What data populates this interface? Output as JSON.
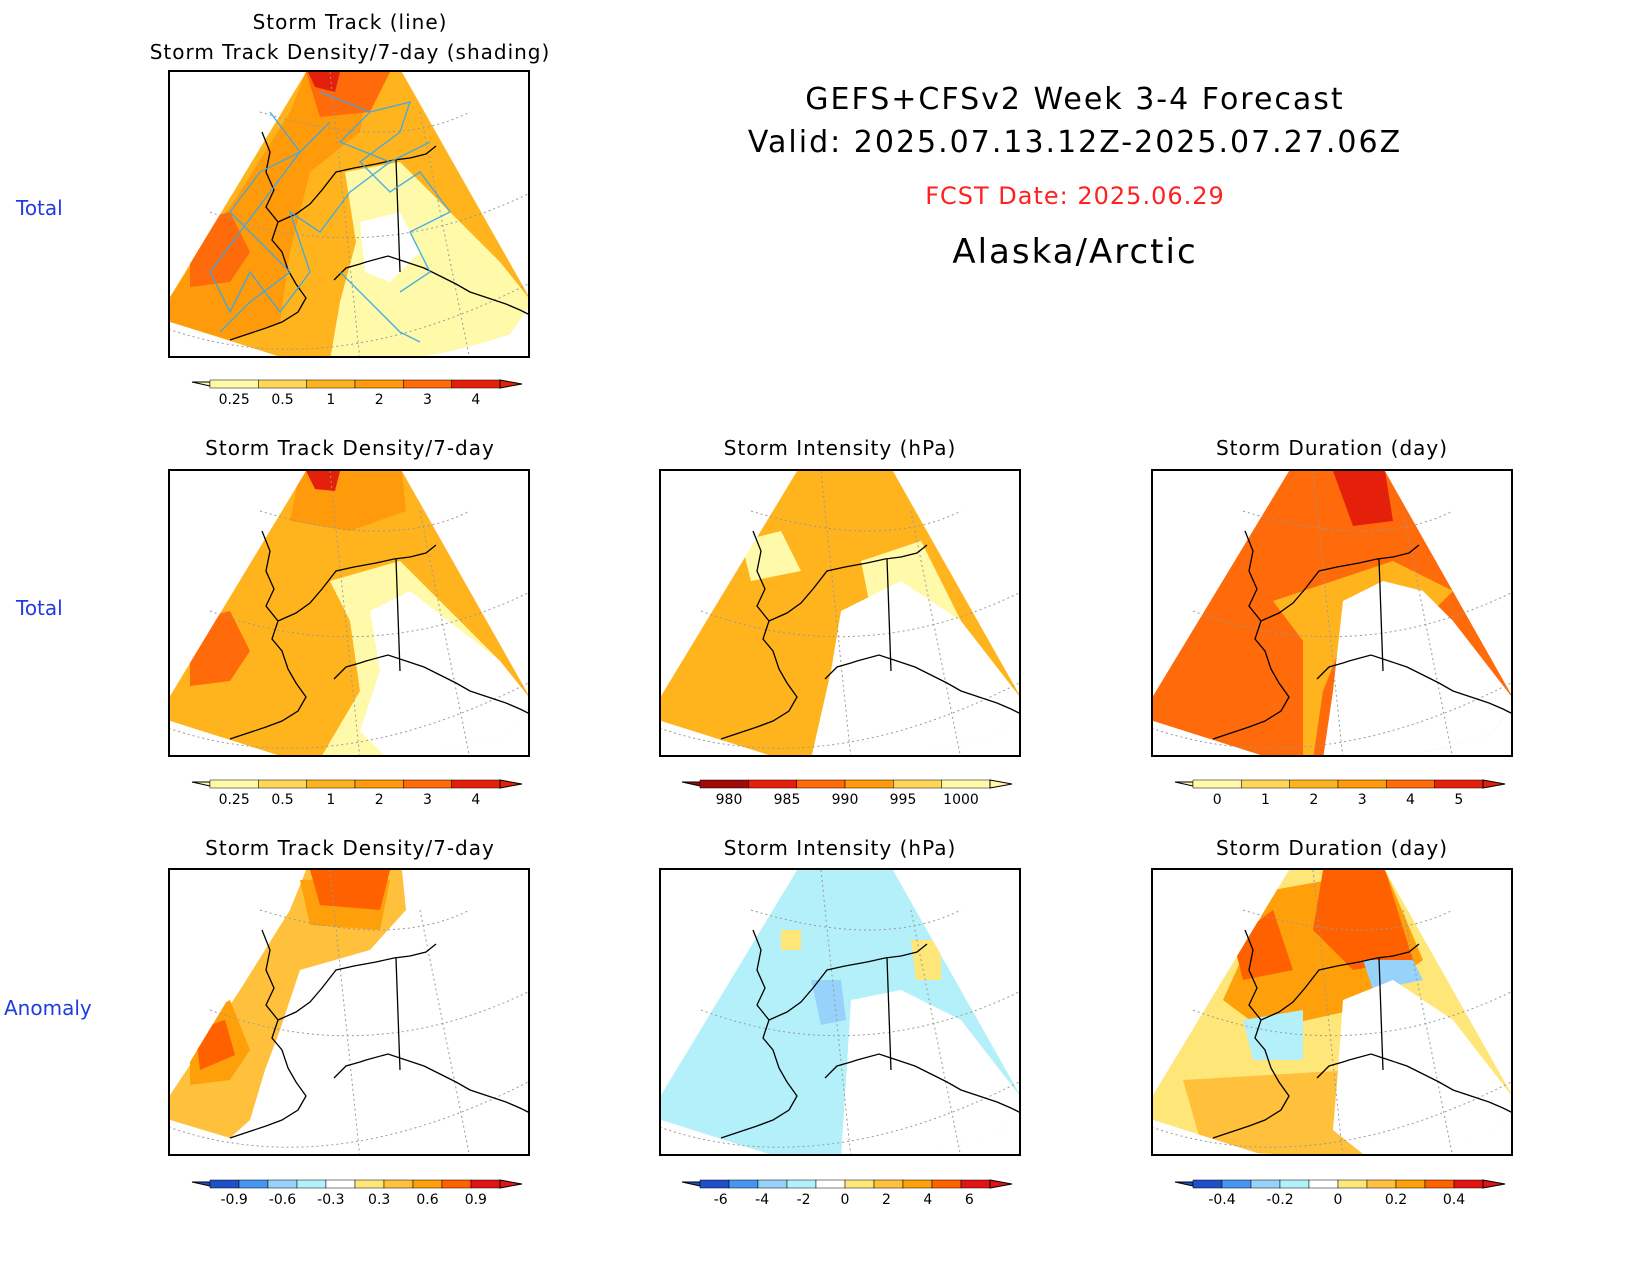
{
  "header": {
    "line1": "GEFS+CFSv2 Week 3-4 Forecast",
    "line2": "Valid: 2025.07.13.12Z-2025.07.27.06Z",
    "fcst": "FCST Date: 2025.06.29",
    "region": "Alaska/Arctic"
  },
  "rows": {
    "r1": "Total",
    "r2": "Total",
    "r3": "Anomaly"
  },
  "panels": {
    "p1": {
      "title1": "Storm Track (line)",
      "title2": "Storm Track Density/7-day (shading)",
      "colorbar": [
        "0.25",
        "0.5",
        "1",
        "2",
        "3",
        "4"
      ]
    },
    "p2": {
      "title": "Storm Track Density/7-day",
      "colorbar": [
        "0.25",
        "0.5",
        "1",
        "2",
        "3",
        "4"
      ]
    },
    "p3": {
      "title": "Storm Intensity (hPa)",
      "colorbar": [
        "980",
        "985",
        "990",
        "995",
        "1000"
      ]
    },
    "p4": {
      "title": "Storm Duration (day)",
      "colorbar": [
        "0",
        "1",
        "2",
        "3",
        "4",
        "5"
      ]
    },
    "p5": {
      "title": "Storm Track Density/7-day",
      "colorbar": [
        "-0.9",
        "-0.6",
        "-0.3",
        "0.3",
        "0.6",
        "0.9"
      ]
    },
    "p6": {
      "title": "Storm Intensity (hPa)",
      "colorbar": [
        "-6",
        "-4",
        "-2",
        "0",
        "2",
        "4",
        "6"
      ]
    },
    "p7": {
      "title": "Storm Duration (day)",
      "colorbar": [
        "-0.4",
        "-0.2",
        "0",
        "0.2",
        "0.4"
      ]
    }
  },
  "colors": {
    "row_label": "#1f3ce0",
    "fcst_date": "#ff2020",
    "track_line": "#3aa8e6",
    "density_scale": [
      "#fffaaa",
      "#ffd75a",
      "#ffb41e",
      "#ff9a0a",
      "#ff6a0a",
      "#e5200a",
      "#a00a0a"
    ],
    "intensity_scale": [
      "#a00a0a",
      "#e5200a",
      "#ff6a0a",
      "#ff9a0a",
      "#ffd75a",
      "#fffaaa"
    ],
    "anomaly_scale": [
      "#1e50c8",
      "#4696f0",
      "#96d2fa",
      "#b4f0fa",
      "#ffffff",
      "#ffe678",
      "#ffc03c",
      "#ffa00a",
      "#ff6000",
      "#e01414"
    ]
  }
}
